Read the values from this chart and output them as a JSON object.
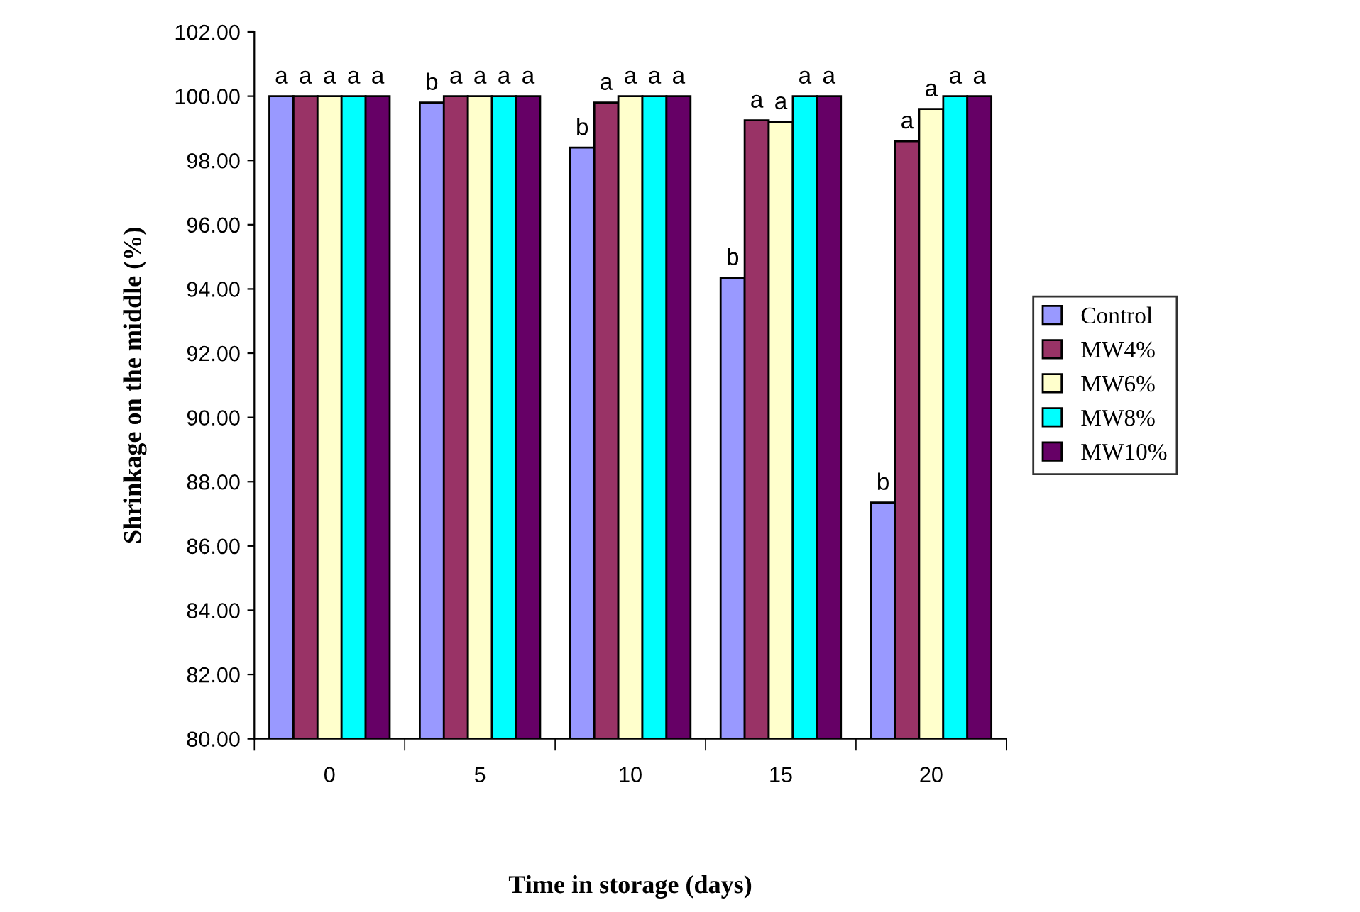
{
  "chart_data": {
    "type": "bar",
    "xlabel": "Time in storage (days)",
    "ylabel": "Shrinkage on the middle (%)",
    "categories": [
      "0",
      "5",
      "10",
      "15",
      "20"
    ],
    "series": [
      {
        "name": "Control",
        "color": "#9999ff",
        "values": [
          100,
          99.8,
          98.4,
          94.35,
          87.35
        ],
        "value_labels": [
          "a",
          "b",
          "b",
          "b",
          "b"
        ]
      },
      {
        "name": "MW4%",
        "color": "#993366",
        "values": [
          100,
          100,
          99.8,
          99.25,
          98.6
        ],
        "value_labels": [
          "a",
          "a",
          "a",
          "a",
          "a"
        ]
      },
      {
        "name": "MW6%",
        "color": "#ffffcc",
        "values": [
          100,
          100,
          100,
          99.2,
          99.6
        ],
        "value_labels": [
          "a",
          "a",
          "a",
          "a",
          "a"
        ]
      },
      {
        "name": "MW8%",
        "color": "#00ffff",
        "values": [
          100,
          100,
          100,
          100,
          100
        ],
        "value_labels": [
          "a",
          "a",
          "a",
          "a",
          "a"
        ]
      },
      {
        "name": "MW10%",
        "color": "#660066",
        "values": [
          100,
          100,
          100,
          100,
          100
        ],
        "value_labels": [
          "a",
          "a",
          "a",
          "a",
          "a"
        ]
      }
    ],
    "ylim": [
      80,
      102
    ],
    "yticks": [
      {
        "value": 80,
        "label": "80.00"
      },
      {
        "value": 82,
        "label": "82.00"
      },
      {
        "value": 84,
        "label": "84.00"
      },
      {
        "value": 86,
        "label": "86.00"
      },
      {
        "value": 88,
        "label": "88.00"
      },
      {
        "value": 90,
        "label": "90.00"
      },
      {
        "value": 92,
        "label": "92.00"
      },
      {
        "value": 94,
        "label": "94.00"
      },
      {
        "value": 96,
        "label": "96.00"
      },
      {
        "value": 98,
        "label": "98.00"
      },
      {
        "value": 100,
        "label": "100.00"
      },
      {
        "value": 102,
        "label": "102.00"
      }
    ],
    "grid": false,
    "legend": "right"
  }
}
